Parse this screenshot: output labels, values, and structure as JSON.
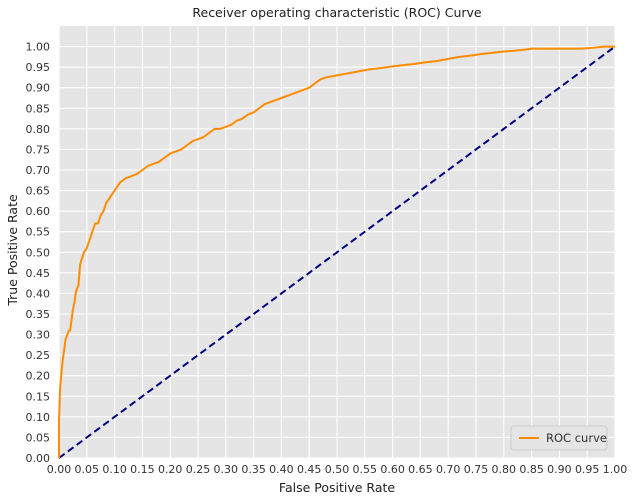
{
  "chart_data": {
    "type": "line",
    "title": "Receiver operating characteristic (ROC) Curve",
    "xlabel": "False Positive Rate",
    "ylabel": "True Positive Rate",
    "xlim": [
      0.0,
      1.0
    ],
    "ylim": [
      0.0,
      1.05
    ],
    "xticks": [
      "0.00",
      "0.05",
      "0.10",
      "0.15",
      "0.20",
      "0.25",
      "0.30",
      "0.35",
      "0.40",
      "0.45",
      "0.50",
      "0.55",
      "0.60",
      "0.65",
      "0.70",
      "0.75",
      "0.80",
      "0.85",
      "0.90",
      "0.95",
      "1.00"
    ],
    "yticks": [
      "0.00",
      "0.05",
      "0.10",
      "0.15",
      "0.20",
      "0.25",
      "0.30",
      "0.35",
      "0.40",
      "0.45",
      "0.50",
      "0.55",
      "0.60",
      "0.65",
      "0.70",
      "0.75",
      "0.80",
      "0.85",
      "0.90",
      "0.95",
      "1.00"
    ],
    "grid": true,
    "legend_position": "lower-right",
    "background_color": "#e5e5e5",
    "grid_color": "#ffffff",
    "series": [
      {
        "name": "ROC curve",
        "color": "#ff8c00",
        "style": "solid",
        "x": [
          0.0,
          0.0,
          0.002,
          0.004,
          0.006,
          0.008,
          0.01,
          0.012,
          0.015,
          0.018,
          0.02,
          0.022,
          0.025,
          0.028,
          0.03,
          0.032,
          0.035,
          0.038,
          0.04,
          0.045,
          0.05,
          0.055,
          0.06,
          0.065,
          0.07,
          0.075,
          0.08,
          0.085,
          0.09,
          0.095,
          0.1,
          0.105,
          0.11,
          0.115,
          0.12,
          0.13,
          0.14,
          0.15,
          0.16,
          0.17,
          0.18,
          0.19,
          0.2,
          0.21,
          0.22,
          0.23,
          0.24,
          0.25,
          0.26,
          0.27,
          0.28,
          0.29,
          0.3,
          0.31,
          0.32,
          0.33,
          0.34,
          0.35,
          0.36,
          0.37,
          0.38,
          0.39,
          0.4,
          0.41,
          0.42,
          0.43,
          0.44,
          0.45,
          0.46,
          0.47,
          0.48,
          0.5,
          0.52,
          0.54,
          0.56,
          0.58,
          0.6,
          0.62,
          0.64,
          0.66,
          0.68,
          0.7,
          0.72,
          0.74,
          0.76,
          0.78,
          0.8,
          0.82,
          0.84,
          0.85,
          0.86,
          0.88,
          0.9,
          0.92,
          0.94,
          0.96,
          0.98,
          1.0
        ],
        "y": [
          0.0,
          0.09,
          0.17,
          0.2,
          0.23,
          0.25,
          0.27,
          0.29,
          0.3,
          0.31,
          0.31,
          0.33,
          0.36,
          0.38,
          0.4,
          0.41,
          0.42,
          0.47,
          0.48,
          0.5,
          0.51,
          0.53,
          0.55,
          0.57,
          0.57,
          0.59,
          0.6,
          0.62,
          0.63,
          0.64,
          0.65,
          0.66,
          0.67,
          0.675,
          0.68,
          0.685,
          0.69,
          0.7,
          0.71,
          0.715,
          0.72,
          0.73,
          0.74,
          0.745,
          0.75,
          0.76,
          0.77,
          0.775,
          0.78,
          0.79,
          0.8,
          0.8,
          0.805,
          0.81,
          0.82,
          0.825,
          0.835,
          0.84,
          0.85,
          0.86,
          0.865,
          0.87,
          0.875,
          0.88,
          0.885,
          0.89,
          0.895,
          0.9,
          0.91,
          0.92,
          0.925,
          0.93,
          0.935,
          0.94,
          0.945,
          0.948,
          0.952,
          0.955,
          0.958,
          0.962,
          0.965,
          0.97,
          0.975,
          0.978,
          0.982,
          0.985,
          0.988,
          0.99,
          0.993,
          0.995,
          0.995,
          0.995,
          0.995,
          0.995,
          0.995,
          0.997,
          1.0,
          1.0
        ]
      },
      {
        "name": "",
        "color": "#000080",
        "style": "dashed",
        "x": [
          0.0,
          1.0
        ],
        "y": [
          0.0,
          1.0
        ]
      }
    ],
    "legend": [
      {
        "label": "ROC curve",
        "color": "#ff8c00"
      }
    ]
  }
}
